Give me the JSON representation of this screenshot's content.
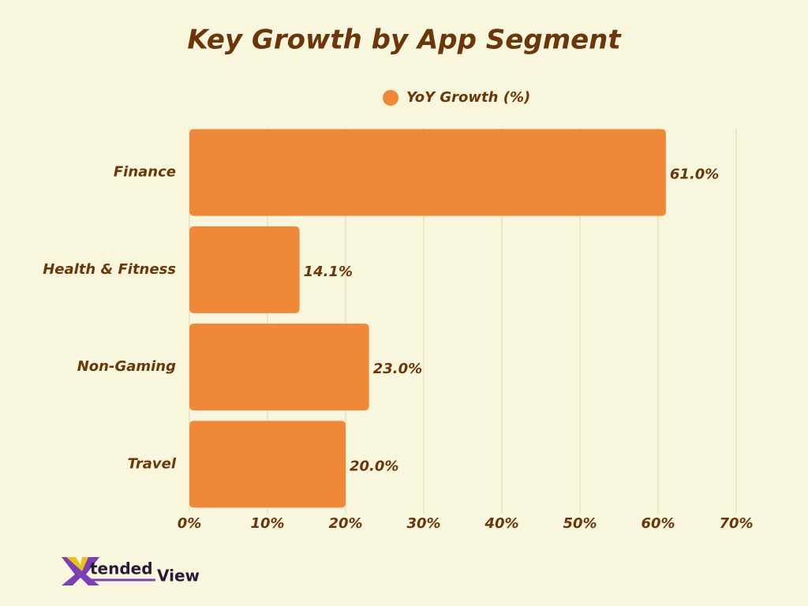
{
  "chart_data": {
    "type": "hbar",
    "title": "Key Growth by App Segment",
    "categories": [
      "Finance",
      "Health & Fitness",
      "Non-Gaming",
      "Travel"
    ],
    "series": [
      {
        "name": "YoY Growth (%)",
        "color": "#f0883a",
        "values": [
          61.0,
          14.1,
          23.0,
          20.0
        ],
        "value_labels": [
          "61.0%",
          "14.1%",
          "23.0%",
          "20.0%"
        ]
      }
    ],
    "xlim": [
      0,
      70
    ],
    "xticks": [
      {
        "value": 0,
        "label": "0%"
      },
      {
        "value": 10,
        "label": "10%"
      },
      {
        "value": 20,
        "label": "20%"
      },
      {
        "value": 30,
        "label": "30%"
      },
      {
        "value": 40,
        "label": "40%"
      },
      {
        "value": 50,
        "label": "50%"
      },
      {
        "value": 60,
        "label": "60%"
      },
      {
        "value": 70,
        "label": "70%"
      }
    ],
    "grid": true,
    "legend": "top"
  },
  "logo": {
    "parts": [
      "X",
      "tended",
      "View"
    ]
  }
}
